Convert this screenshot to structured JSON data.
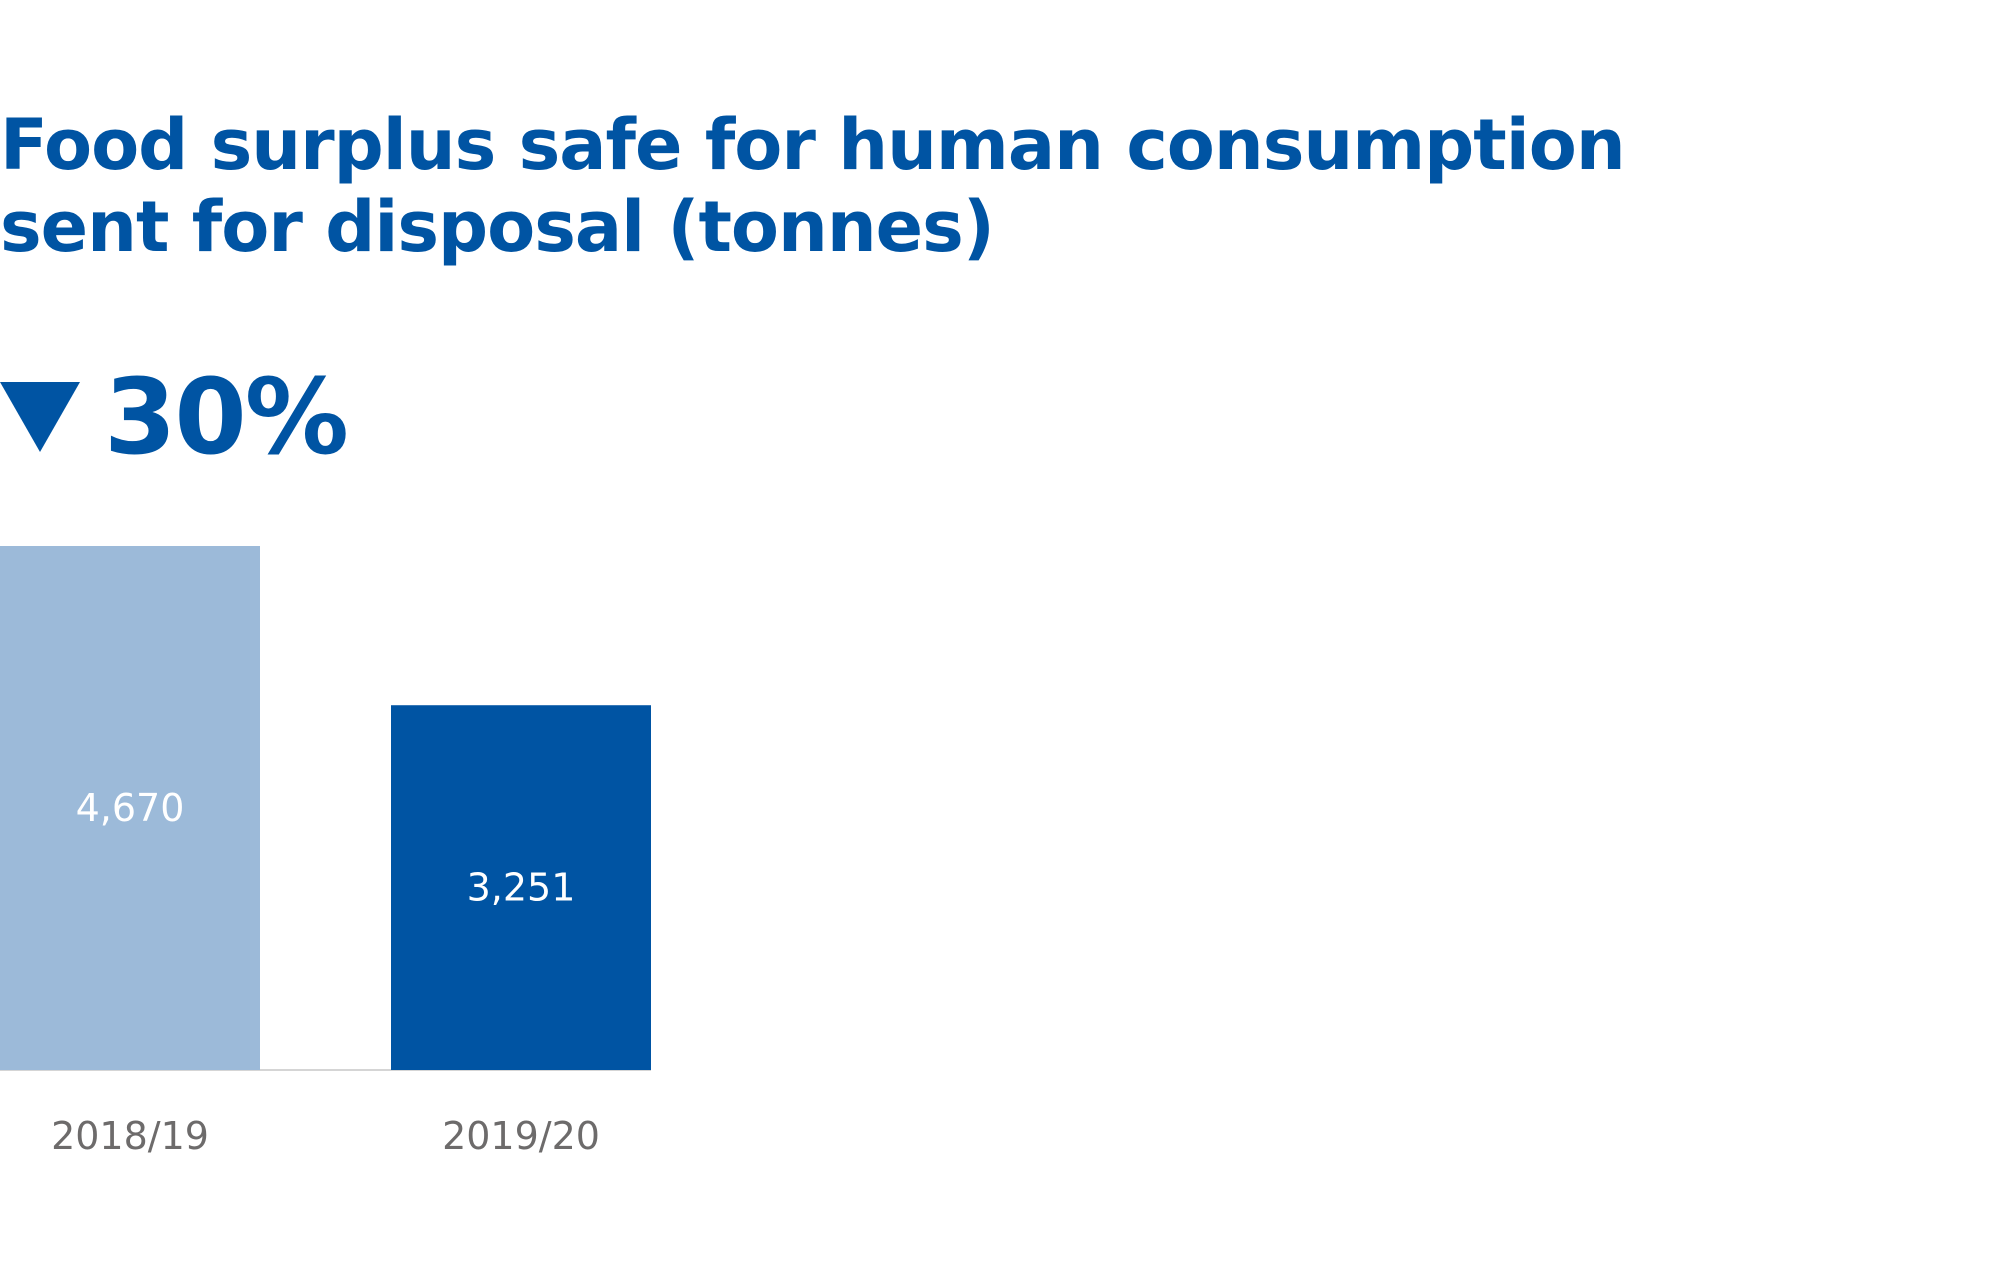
{
  "header": {
    "title_line1": "Food surplus safe for human consumption",
    "title_line2": "sent for disposal (tonnes)"
  },
  "change": {
    "direction": "down",
    "icon": "down-triangle-icon",
    "value": "30%"
  },
  "colors": {
    "accent": "#0054A3",
    "previous_bar": "#9CBAD9",
    "current_bar": "#0054A3",
    "axis_label": "#6D6B6B",
    "baseline": "#D5D5D5",
    "bar_label": "#FFFFFF"
  },
  "chart_data": {
    "type": "bar",
    "title": "Food surplus safe for human consumption sent for disposal (tonnes)",
    "categories": [
      "2018/19",
      "2019/20"
    ],
    "values": [
      4670,
      3251
    ],
    "data_labels": [
      "4,670",
      "3,251"
    ],
    "bar_colors": [
      "#9CBAD9",
      "#0054A3"
    ],
    "ylim": [
      0,
      4670
    ],
    "grid": false,
    "legend": "none",
    "xlabel": "",
    "ylabel": ""
  }
}
